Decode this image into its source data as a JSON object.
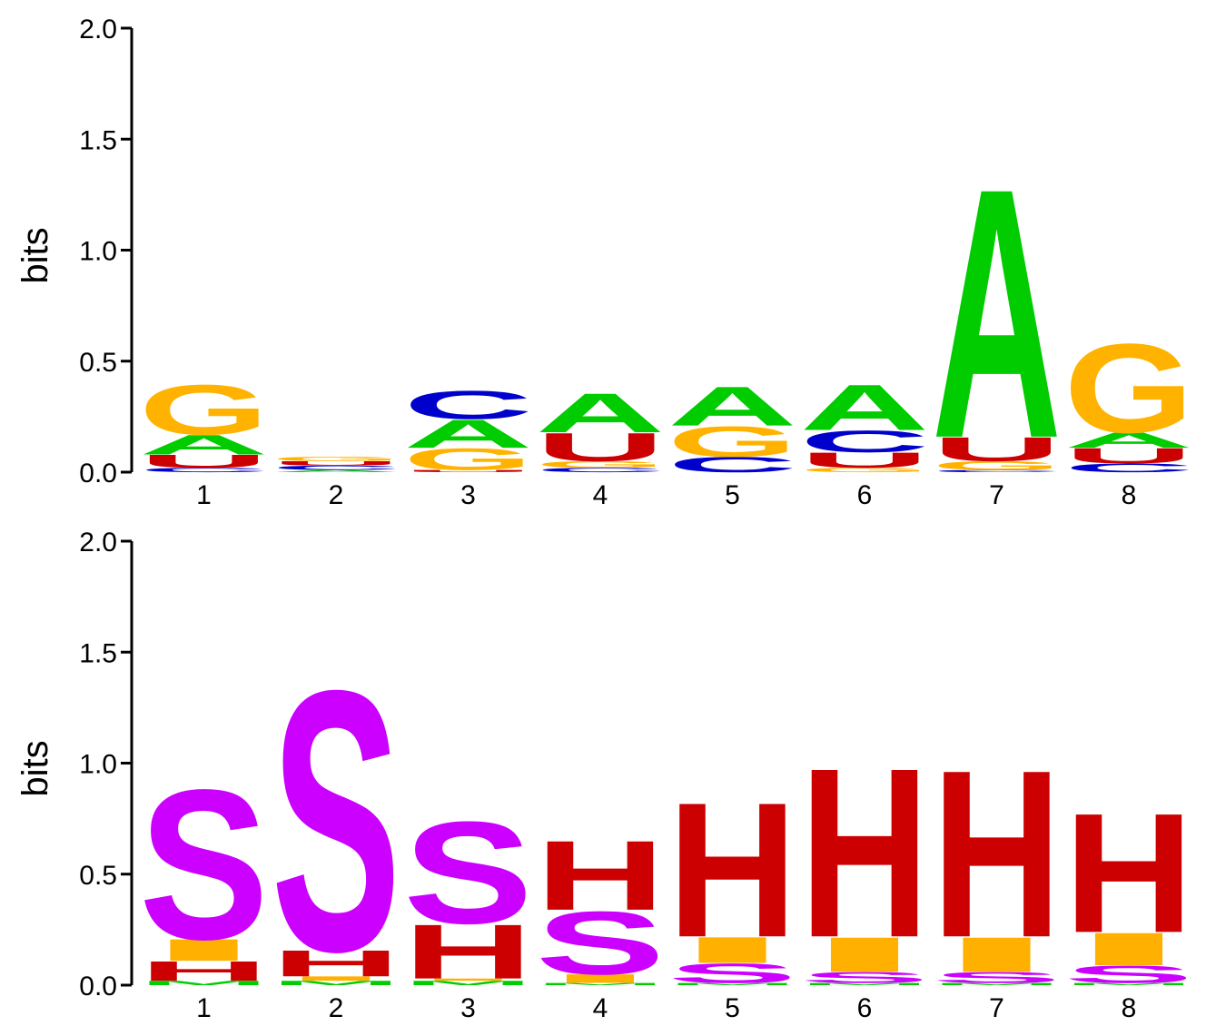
{
  "colors": {
    "A": "#00cc00",
    "C": "#0000cc",
    "G": "#ffb300",
    "U": "#cc0000",
    "S": "#cc00ff",
    "H": "#cc0000",
    "I": "#ffb000",
    "M": "#00cc00"
  },
  "chart_data": [
    {
      "type": "sequence-logo",
      "title": "",
      "xlabel": "",
      "ylabel": "bits",
      "ylim": [
        0,
        2.0
      ],
      "yticks": [
        "0.0",
        "0.5",
        "1.0",
        "1.5",
        "2.0"
      ],
      "positions": [
        "1",
        "2",
        "3",
        "4",
        "5",
        "6",
        "7",
        "8"
      ],
      "stacks": [
        [
          {
            "letter": "C",
            "value": 0.02
          },
          {
            "letter": "U",
            "value": 0.06
          },
          {
            "letter": "A",
            "value": 0.09
          },
          {
            "letter": "G",
            "value": 0.23
          }
        ],
        [
          {
            "letter": "A",
            "value": 0.01
          },
          {
            "letter": "C",
            "value": 0.02
          },
          {
            "letter": "U",
            "value": 0.02
          },
          {
            "letter": "G",
            "value": 0.02
          }
        ],
        [
          {
            "letter": "U",
            "value": 0.01
          },
          {
            "letter": "G",
            "value": 0.1
          },
          {
            "letter": "A",
            "value": 0.13
          },
          {
            "letter": "C",
            "value": 0.13
          }
        ],
        [
          {
            "letter": "C",
            "value": 0.02
          },
          {
            "letter": "G",
            "value": 0.03
          },
          {
            "letter": "U",
            "value": 0.13
          },
          {
            "letter": "A",
            "value": 0.18
          }
        ],
        [
          {
            "letter": "C",
            "value": 0.07
          },
          {
            "letter": "G",
            "value": 0.14
          },
          {
            "letter": "A",
            "value": 0.18
          }
        ],
        [
          {
            "letter": "G",
            "value": 0.02
          },
          {
            "letter": "U",
            "value": 0.07
          },
          {
            "letter": "C",
            "value": 0.1
          },
          {
            "letter": "A",
            "value": 0.21
          }
        ],
        [
          {
            "letter": "C",
            "value": 0.01
          },
          {
            "letter": "G",
            "value": 0.04
          },
          {
            "letter": "U",
            "value": 0.11
          },
          {
            "letter": "A",
            "value": 1.15
          }
        ],
        [
          {
            "letter": "C",
            "value": 0.04
          },
          {
            "letter": "U",
            "value": 0.07
          },
          {
            "letter": "A",
            "value": 0.07
          },
          {
            "letter": "G",
            "value": 0.41
          }
        ]
      ]
    },
    {
      "type": "sequence-logo",
      "title": "",
      "xlabel": "",
      "ylabel": "bits",
      "ylim": [
        0,
        2.0
      ],
      "yticks": [
        "0.0",
        "0.5",
        "1.0",
        "1.5",
        "2.0"
      ],
      "positions": [
        "1",
        "2",
        "3",
        "4",
        "5",
        "6",
        "7",
        "8"
      ],
      "stacks": [
        [
          {
            "letter": "M",
            "value": 0.02
          },
          {
            "letter": "H",
            "value": 0.09
          },
          {
            "letter": "I",
            "value": 0.1
          },
          {
            "letter": "S",
            "value": 0.69
          }
        ],
        [
          {
            "letter": "M",
            "value": 0.02
          },
          {
            "letter": "I",
            "value": 0.02
          },
          {
            "letter": "H",
            "value": 0.12
          },
          {
            "letter": "S",
            "value": 1.2
          }
        ],
        [
          {
            "letter": "M",
            "value": 0.02
          },
          {
            "letter": "I",
            "value": 0.01
          },
          {
            "letter": "H",
            "value": 0.25
          },
          {
            "letter": "S",
            "value": 0.47
          }
        ],
        [
          {
            "letter": "M",
            "value": 0.01
          },
          {
            "letter": "I",
            "value": 0.04
          },
          {
            "letter": "S",
            "value": 0.29
          },
          {
            "letter": "H",
            "value": 0.32
          }
        ],
        [
          {
            "letter": "M",
            "value": 0.01
          },
          {
            "letter": "S",
            "value": 0.09
          },
          {
            "letter": "I",
            "value": 0.12
          },
          {
            "letter": "H",
            "value": 0.62
          }
        ],
        [
          {
            "letter": "M",
            "value": 0.01
          },
          {
            "letter": "S",
            "value": 0.05
          },
          {
            "letter": "I",
            "value": 0.16
          },
          {
            "letter": "H",
            "value": 0.78
          }
        ],
        [
          {
            "letter": "M",
            "value": 0.01
          },
          {
            "letter": "S",
            "value": 0.05
          },
          {
            "letter": "I",
            "value": 0.16
          },
          {
            "letter": "H",
            "value": 0.77
          }
        ],
        [
          {
            "letter": "M",
            "value": 0.01
          },
          {
            "letter": "S",
            "value": 0.08
          },
          {
            "letter": "I",
            "value": 0.15
          },
          {
            "letter": "H",
            "value": 0.55
          }
        ]
      ]
    }
  ]
}
